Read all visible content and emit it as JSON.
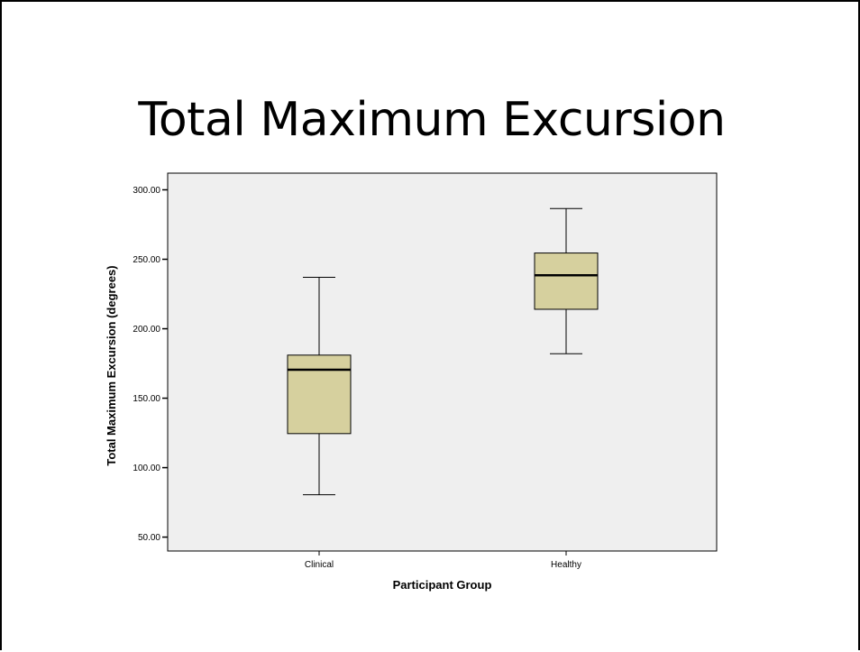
{
  "slide": {
    "title": "Total Maximum Excursion"
  },
  "chart_data": {
    "type": "box",
    "xlabel": "Participant Group",
    "ylabel": "Total Maximum Excursion (degrees)",
    "ylim": [
      40,
      312
    ],
    "yticks": [
      {
        "value": 50,
        "label": "50.00"
      },
      {
        "value": 100,
        "label": "100.00"
      },
      {
        "value": 150,
        "label": "150.00"
      },
      {
        "value": 200,
        "label": "200.00"
      },
      {
        "value": 250,
        "label": "250.00"
      },
      {
        "value": 300,
        "label": "300.00"
      }
    ],
    "categories": [
      "Clinical",
      "Healthy"
    ],
    "boxes": [
      {
        "category": "Clinical",
        "min": 80.5,
        "q1": 124.5,
        "median": 170.5,
        "q3": 181,
        "max": 237
      },
      {
        "category": "Healthy",
        "min": 182,
        "q1": 214,
        "median": 238.5,
        "q3": 254.5,
        "max": 286.5
      }
    ],
    "colors": {
      "plot_background": "#efefef",
      "box_fill": "#d6d09e",
      "stroke": "#000000"
    },
    "grid": false
  }
}
